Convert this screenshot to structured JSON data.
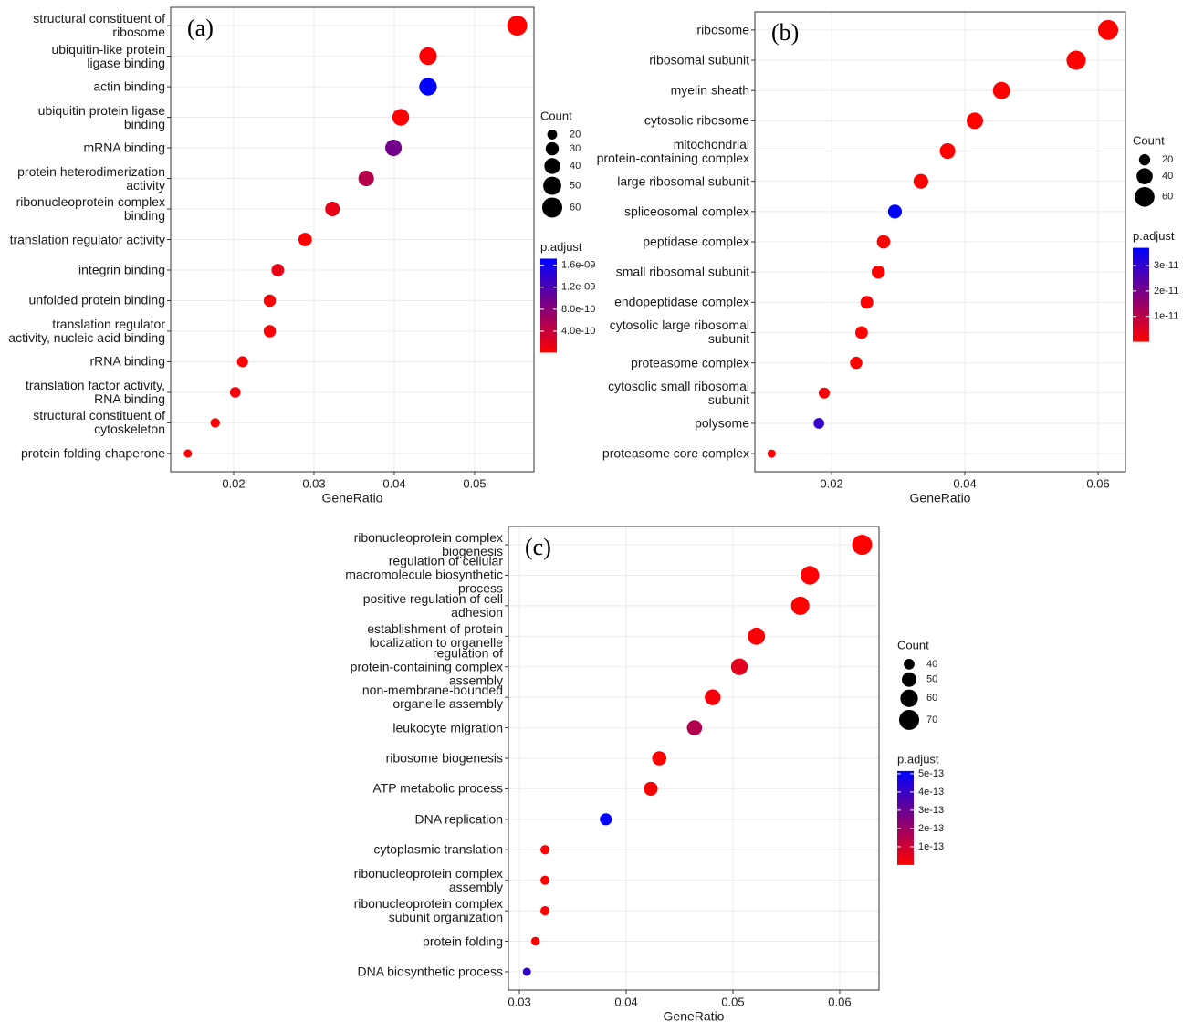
{
  "chart_data": [
    {
      "type": "dot",
      "panel_label": "(a)",
      "xlabel": "GeneRatio",
      "categories": [
        "structural constituent of\nribosome",
        "ubiquitin-like protein\nligase binding",
        "actin binding",
        "ubiquitin protein ligase\nbinding",
        "mRNA binding",
        "protein heterodimerization\nactivity",
        "ribonucleoprotein complex\nbinding",
        "translation regulator activity",
        "integrin binding",
        "unfolded protein binding",
        "translation regulator\nactivity, nucleic acid binding",
        "rRNA binding",
        "translation factor activity,\nRNA binding",
        "structural constituent of\ncytoskeleton",
        "protein folding chaperone"
      ],
      "x": [
        0.0553,
        0.0442,
        0.0442,
        0.0408,
        0.0399,
        0.0365,
        0.0323,
        0.0289,
        0.0255,
        0.0245,
        0.0245,
        0.0211,
        0.0202,
        0.0177,
        0.0143
      ],
      "counts": [
        60,
        48,
        48,
        44,
        43,
        39,
        35,
        31,
        28,
        27,
        27,
        23,
        22,
        19,
        16
      ],
      "p_adjust": [
        1e-11,
        3e-11,
        1.72e-09,
        2e-11,
        9.5e-10,
        5e-10,
        1.5e-10,
        2e-11,
        1.5e-10,
        2e-11,
        3e-11,
        2e-11,
        5e-11,
        3e-11,
        2e-11
      ],
      "xlim": [
        0.01216,
        0.05739
      ],
      "xticks": [
        0.02,
        0.03,
        0.04,
        0.05
      ],
      "grid": true,
      "size_legend_title": "Count",
      "size_ticks": [
        20,
        30,
        40,
        50,
        60
      ],
      "color_legend_title": "p.adjust",
      "color_lim": [
        1e-11,
        1.72e-09
      ],
      "color_ticks": [
        {
          "value": 4e-10,
          "label": "4.0e-10"
        },
        {
          "value": 8e-10,
          "label": "8.0e-10"
        },
        {
          "value": 1.2e-09,
          "label": "1.2e-09"
        },
        {
          "value": 1.6e-09,
          "label": "1.6e-09"
        }
      ],
      "color_low": "#FF0000",
      "color_high": "#0000FF"
    },
    {
      "type": "dot",
      "panel_label": "(b)",
      "xlabel": "GeneRatio",
      "categories": [
        "ribosome",
        "ribosomal subunit",
        "myelin sheath",
        "cytosolic ribosome",
        "mitochondrial\nprotein-containing complex",
        "large ribosomal subunit",
        "spliceosomal complex",
        "peptidase complex",
        "small ribosomal subunit",
        "endopeptidase complex",
        "cytosolic large ribosomal\nsubunit",
        "proteasome complex",
        "cytosolic small ribosomal\nsubunit",
        "polysome",
        "proteasome core complex"
      ],
      "x": [
        0.0615,
        0.0567,
        0.0455,
        0.0415,
        0.0374,
        0.0334,
        0.0295,
        0.0278,
        0.027,
        0.0253,
        0.0245,
        0.0237,
        0.0189,
        0.0181,
        0.011
      ],
      "counts": [
        62,
        57,
        46,
        42,
        38,
        34,
        30,
        28,
        27,
        26,
        25,
        24,
        19,
        18,
        11
      ],
      "p_adjust": [
        1e-16,
        1e-15,
        1e-14,
        5e-15,
        3e-14,
        1e-14,
        3.7e-11,
        2e-13,
        1e-14,
        1e-13,
        1e-14,
        1e-13,
        1e-13,
        2.9e-11,
        2e-13
      ],
      "xlim": [
        0.00849,
        0.0641
      ],
      "xticks": [
        0.02,
        0.04,
        0.06
      ],
      "grid": true,
      "size_legend_title": "Count",
      "size_ticks": [
        20,
        40,
        60
      ],
      "color_legend_title": "p.adjust",
      "color_lim": [
        1e-16,
        3.7e-11
      ],
      "color_ticks": [
        1e-11,
        2e-11,
        3e-11
      ],
      "color_low": "#FF0000",
      "color_high": "#0000FF"
    },
    {
      "type": "dot",
      "panel_label": "(c)",
      "xlabel": "GeneRatio",
      "categories": [
        "ribonucleoprotein complex\nbiogenesis",
        "regulation of cellular\nmacromolecule biosynthetic\nprocess",
        "positive regulation of cell\nadhesion",
        "establishment of protein\nlocalization to organelle",
        "regulation of\nprotein-containing complex\nassembly",
        "non-membrane-bounded\norganelle assembly",
        "leukocyte migration",
        "ribosome biogenesis",
        "ATP metabolic process",
        "DNA replication",
        "cytoplasmic translation",
        "ribonucleoprotein complex\nassembly",
        "ribonucleoprotein complex\nsubunit organization",
        "protein folding",
        "DNA biosynthetic process"
      ],
      "x": [
        0.0621,
        0.0572,
        0.0563,
        0.0522,
        0.0506,
        0.0481,
        0.0464,
        0.0431,
        0.0423,
        0.0381,
        0.0324,
        0.0324,
        0.0324,
        0.0315,
        0.0307
      ],
      "counts": [
        70,
        64,
        63,
        59,
        57,
        54,
        52,
        49,
        48,
        43,
        37,
        37,
        37,
        36,
        35
      ],
      "p_adjust": [
        1e-16,
        2e-15,
        5e-15,
        1e-14,
        6e-14,
        2e-14,
        1.6e-13,
        3e-15,
        1e-14,
        5.15e-13,
        1e-16,
        1e-16,
        1e-16,
        1e-15,
        4.1e-13
      ],
      "xlim": [
        0.02897,
        0.06368
      ],
      "xticks": [
        0.03,
        0.04,
        0.05,
        0.06
      ],
      "grid": true,
      "size_legend_title": "Count",
      "size_ticks": [
        40,
        50,
        60,
        70
      ],
      "color_legend_title": "p.adjust",
      "color_lim": [
        1e-16,
        5.15e-13
      ],
      "color_ticks": [
        1e-13,
        2e-13,
        3e-13,
        4e-13,
        5e-13
      ],
      "color_low": "#FF0000",
      "color_high": "#0000FF"
    }
  ]
}
